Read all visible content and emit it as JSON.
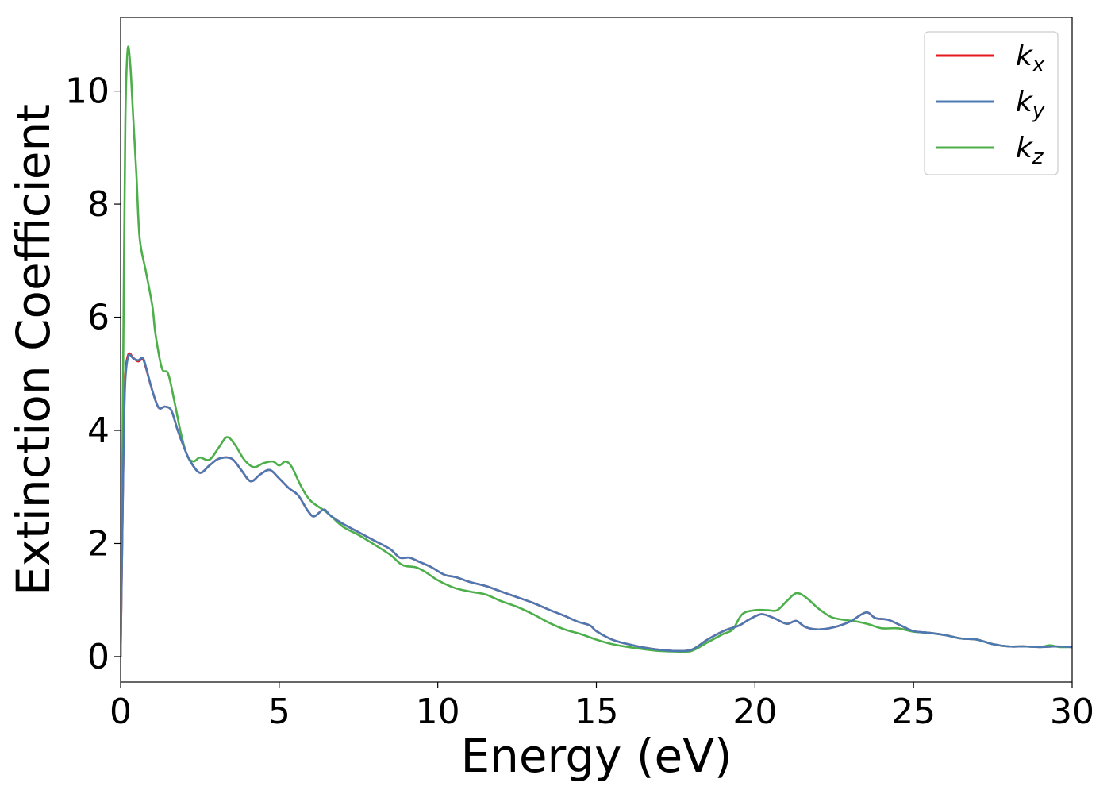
{
  "chart_data": {
    "type": "line",
    "xlabel": "Energy (eV)",
    "ylabel": "Extinction Coefficient",
    "xlim": [
      0,
      30
    ],
    "ylim": [
      -0.45,
      11.3
    ],
    "xticks": [
      0,
      5,
      10,
      15,
      20,
      25,
      30
    ],
    "yticks": [
      0,
      2,
      4,
      6,
      8,
      10
    ],
    "grid": false,
    "legend_position": "top-right",
    "series": [
      {
        "name": "k",
        "subscript": "x",
        "color": "#e41a1c",
        "points": [
          [
            0,
            0
          ],
          [
            0.05,
            2.0
          ],
          [
            0.1,
            4.0
          ],
          [
            0.15,
            5.0
          ],
          [
            0.25,
            5.35
          ],
          [
            0.4,
            5.28
          ],
          [
            0.55,
            5.22
          ],
          [
            0.7,
            5.26
          ],
          [
            0.8,
            5.1
          ],
          [
            1.0,
            4.7
          ],
          [
            1.2,
            4.4
          ],
          [
            1.4,
            4.42
          ],
          [
            1.6,
            4.35
          ],
          [
            1.8,
            4.0
          ],
          [
            2.0,
            3.7
          ],
          [
            2.2,
            3.45
          ],
          [
            2.5,
            3.25
          ],
          [
            2.8,
            3.38
          ],
          [
            3.1,
            3.5
          ],
          [
            3.5,
            3.5
          ],
          [
            3.8,
            3.3
          ],
          [
            4.1,
            3.1
          ],
          [
            4.4,
            3.22
          ],
          [
            4.7,
            3.3
          ],
          [
            5.0,
            3.15
          ],
          [
            5.3,
            2.98
          ],
          [
            5.6,
            2.85
          ],
          [
            5.9,
            2.58
          ],
          [
            6.1,
            2.48
          ],
          [
            6.4,
            2.6
          ],
          [
            6.6,
            2.5
          ],
          [
            7.0,
            2.35
          ],
          [
            7.5,
            2.2
          ],
          [
            8.0,
            2.05
          ],
          [
            8.5,
            1.9
          ],
          [
            8.8,
            1.75
          ],
          [
            9.1,
            1.75
          ],
          [
            9.4,
            1.68
          ],
          [
            9.8,
            1.58
          ],
          [
            10.2,
            1.45
          ],
          [
            10.6,
            1.4
          ],
          [
            11.0,
            1.32
          ],
          [
            11.5,
            1.25
          ],
          [
            12.0,
            1.15
          ],
          [
            12.5,
            1.05
          ],
          [
            13.0,
            0.95
          ],
          [
            13.5,
            0.83
          ],
          [
            14.0,
            0.72
          ],
          [
            14.4,
            0.62
          ],
          [
            14.8,
            0.55
          ],
          [
            15.0,
            0.45
          ],
          [
            15.5,
            0.3
          ],
          [
            16.0,
            0.22
          ],
          [
            16.5,
            0.16
          ],
          [
            17.0,
            0.12
          ],
          [
            17.5,
            0.1
          ],
          [
            18.0,
            0.12
          ],
          [
            18.5,
            0.3
          ],
          [
            19.0,
            0.45
          ],
          [
            19.5,
            0.55
          ],
          [
            19.8,
            0.65
          ],
          [
            20.2,
            0.75
          ],
          [
            20.6,
            0.68
          ],
          [
            21.0,
            0.58
          ],
          [
            21.3,
            0.63
          ],
          [
            21.6,
            0.52
          ],
          [
            22.0,
            0.48
          ],
          [
            22.5,
            0.52
          ],
          [
            23.0,
            0.62
          ],
          [
            23.5,
            0.78
          ],
          [
            23.8,
            0.68
          ],
          [
            24.2,
            0.65
          ],
          [
            24.6,
            0.55
          ],
          [
            25.0,
            0.45
          ],
          [
            25.5,
            0.42
          ],
          [
            26.0,
            0.38
          ],
          [
            26.5,
            0.32
          ],
          [
            27.0,
            0.3
          ],
          [
            27.5,
            0.22
          ],
          [
            28.0,
            0.18
          ],
          [
            28.5,
            0.18
          ],
          [
            29.0,
            0.17
          ],
          [
            29.5,
            0.18
          ],
          [
            30.0,
            0.17
          ]
        ]
      },
      {
        "name": "k",
        "subscript": "y",
        "color": "#4d79b3",
        "points": [
          [
            0,
            0
          ],
          [
            0.05,
            2.0
          ],
          [
            0.1,
            3.9
          ],
          [
            0.15,
            4.9
          ],
          [
            0.25,
            5.32
          ],
          [
            0.4,
            5.27
          ],
          [
            0.55,
            5.24
          ],
          [
            0.7,
            5.28
          ],
          [
            0.8,
            5.12
          ],
          [
            1.0,
            4.7
          ],
          [
            1.2,
            4.4
          ],
          [
            1.4,
            4.42
          ],
          [
            1.6,
            4.35
          ],
          [
            1.8,
            4.0
          ],
          [
            2.0,
            3.7
          ],
          [
            2.2,
            3.45
          ],
          [
            2.5,
            3.25
          ],
          [
            2.8,
            3.38
          ],
          [
            3.1,
            3.5
          ],
          [
            3.5,
            3.5
          ],
          [
            3.8,
            3.3
          ],
          [
            4.1,
            3.1
          ],
          [
            4.4,
            3.22
          ],
          [
            4.7,
            3.3
          ],
          [
            5.0,
            3.15
          ],
          [
            5.3,
            2.98
          ],
          [
            5.6,
            2.85
          ],
          [
            5.9,
            2.58
          ],
          [
            6.1,
            2.48
          ],
          [
            6.4,
            2.6
          ],
          [
            6.6,
            2.5
          ],
          [
            7.0,
            2.35
          ],
          [
            7.5,
            2.2
          ],
          [
            8.0,
            2.05
          ],
          [
            8.5,
            1.9
          ],
          [
            8.8,
            1.75
          ],
          [
            9.1,
            1.75
          ],
          [
            9.4,
            1.68
          ],
          [
            9.8,
            1.58
          ],
          [
            10.2,
            1.45
          ],
          [
            10.6,
            1.4
          ],
          [
            11.0,
            1.32
          ],
          [
            11.5,
            1.25
          ],
          [
            12.0,
            1.15
          ],
          [
            12.5,
            1.05
          ],
          [
            13.0,
            0.95
          ],
          [
            13.5,
            0.83
          ],
          [
            14.0,
            0.72
          ],
          [
            14.4,
            0.62
          ],
          [
            14.8,
            0.55
          ],
          [
            15.0,
            0.45
          ],
          [
            15.5,
            0.3
          ],
          [
            16.0,
            0.22
          ],
          [
            16.5,
            0.16
          ],
          [
            17.0,
            0.12
          ],
          [
            17.5,
            0.1
          ],
          [
            18.0,
            0.12
          ],
          [
            18.5,
            0.3
          ],
          [
            19.0,
            0.45
          ],
          [
            19.5,
            0.55
          ],
          [
            19.8,
            0.65
          ],
          [
            20.2,
            0.75
          ],
          [
            20.6,
            0.68
          ],
          [
            21.0,
            0.58
          ],
          [
            21.3,
            0.63
          ],
          [
            21.6,
            0.52
          ],
          [
            22.0,
            0.48
          ],
          [
            22.5,
            0.52
          ],
          [
            23.0,
            0.62
          ],
          [
            23.5,
            0.78
          ],
          [
            23.8,
            0.68
          ],
          [
            24.2,
            0.65
          ],
          [
            24.6,
            0.55
          ],
          [
            25.0,
            0.45
          ],
          [
            25.5,
            0.42
          ],
          [
            26.0,
            0.38
          ],
          [
            26.5,
            0.32
          ],
          [
            27.0,
            0.3
          ],
          [
            27.5,
            0.22
          ],
          [
            28.0,
            0.18
          ],
          [
            28.5,
            0.18
          ],
          [
            29.0,
            0.17
          ],
          [
            29.5,
            0.18
          ],
          [
            30.0,
            0.17
          ]
        ]
      },
      {
        "name": "k",
        "subscript": "z",
        "color": "#4daf4a",
        "points": [
          [
            0,
            0
          ],
          [
            0.05,
            3.0
          ],
          [
            0.1,
            6.5
          ],
          [
            0.15,
            9.5
          ],
          [
            0.22,
            10.72
          ],
          [
            0.3,
            10.5
          ],
          [
            0.4,
            9.5
          ],
          [
            0.5,
            8.5
          ],
          [
            0.6,
            7.4
          ],
          [
            0.8,
            6.8
          ],
          [
            1.0,
            6.2
          ],
          [
            1.1,
            5.7
          ],
          [
            1.3,
            5.1
          ],
          [
            1.5,
            5.0
          ],
          [
            1.7,
            4.5
          ],
          [
            1.9,
            3.95
          ],
          [
            2.1,
            3.55
          ],
          [
            2.3,
            3.45
          ],
          [
            2.5,
            3.52
          ],
          [
            2.8,
            3.48
          ],
          [
            3.1,
            3.7
          ],
          [
            3.35,
            3.88
          ],
          [
            3.6,
            3.75
          ],
          [
            3.9,
            3.48
          ],
          [
            4.2,
            3.35
          ],
          [
            4.5,
            3.42
          ],
          [
            4.8,
            3.45
          ],
          [
            5.0,
            3.38
          ],
          [
            5.2,
            3.45
          ],
          [
            5.4,
            3.35
          ],
          [
            5.7,
            3.0
          ],
          [
            6.0,
            2.75
          ],
          [
            6.5,
            2.55
          ],
          [
            7.0,
            2.3
          ],
          [
            7.5,
            2.15
          ],
          [
            8.0,
            1.98
          ],
          [
            8.5,
            1.8
          ],
          [
            8.8,
            1.65
          ],
          [
            9.0,
            1.6
          ],
          [
            9.3,
            1.58
          ],
          [
            9.6,
            1.5
          ],
          [
            10.0,
            1.35
          ],
          [
            10.5,
            1.22
          ],
          [
            11.0,
            1.15
          ],
          [
            11.5,
            1.1
          ],
          [
            12.0,
            0.98
          ],
          [
            12.5,
            0.88
          ],
          [
            13.0,
            0.75
          ],
          [
            13.5,
            0.6
          ],
          [
            14.0,
            0.48
          ],
          [
            14.5,
            0.4
          ],
          [
            15.0,
            0.3
          ],
          [
            15.5,
            0.22
          ],
          [
            16.0,
            0.17
          ],
          [
            16.5,
            0.13
          ],
          [
            17.0,
            0.1
          ],
          [
            17.5,
            0.09
          ],
          [
            18.0,
            0.1
          ],
          [
            18.5,
            0.25
          ],
          [
            19.0,
            0.4
          ],
          [
            19.3,
            0.48
          ],
          [
            19.6,
            0.75
          ],
          [
            20.0,
            0.82
          ],
          [
            20.4,
            0.82
          ],
          [
            20.7,
            0.82
          ],
          [
            21.0,
            0.98
          ],
          [
            21.3,
            1.12
          ],
          [
            21.6,
            1.05
          ],
          [
            22.0,
            0.85
          ],
          [
            22.4,
            0.7
          ],
          [
            22.8,
            0.65
          ],
          [
            23.2,
            0.62
          ],
          [
            23.6,
            0.57
          ],
          [
            24.0,
            0.5
          ],
          [
            24.5,
            0.5
          ],
          [
            25.0,
            0.44
          ],
          [
            25.5,
            0.42
          ],
          [
            26.0,
            0.38
          ],
          [
            26.5,
            0.32
          ],
          [
            27.0,
            0.3
          ],
          [
            27.5,
            0.22
          ],
          [
            28.0,
            0.18
          ],
          [
            28.5,
            0.18
          ],
          [
            29.0,
            0.17
          ],
          [
            29.3,
            0.2
          ],
          [
            29.6,
            0.17
          ],
          [
            30.0,
            0.17
          ]
        ]
      }
    ]
  }
}
